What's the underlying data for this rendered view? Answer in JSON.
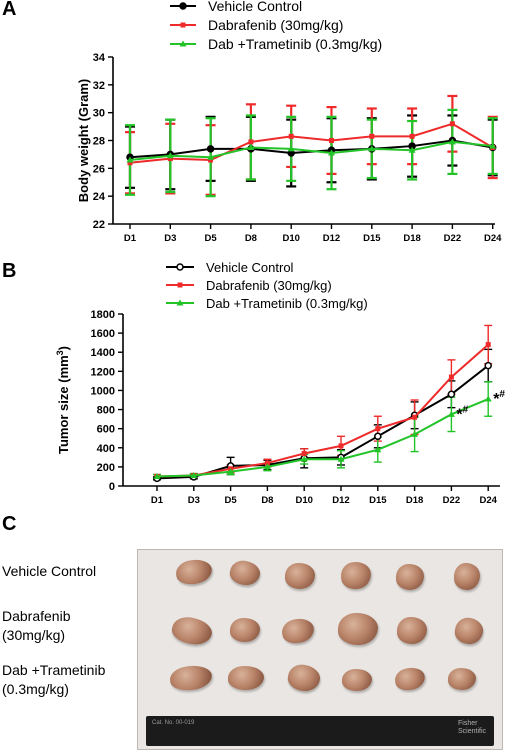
{
  "panels": {
    "a": {
      "letter": "A"
    },
    "b": {
      "letter": "B"
    },
    "c": {
      "letter": "C"
    }
  },
  "colors": {
    "vehicle": "#000000",
    "dabrafenib": "#ee2a2a",
    "combo": "#22c428",
    "axis": "#000000"
  },
  "chart_data": [
    {
      "type": "line",
      "panel": "A",
      "ylabel": "Body weight (Gram)",
      "xlabel": "",
      "categories": [
        "D1",
        "D3",
        "D5",
        "D8",
        "D10",
        "D12",
        "D15",
        "D18",
        "D22",
        "D24"
      ],
      "ylim": [
        22,
        34
      ],
      "yticks": [
        22,
        24,
        26,
        28,
        30,
        32,
        34
      ],
      "legend_position": "top",
      "series": [
        {
          "name": "Vehicle Control",
          "color": "#000000",
          "marker": "circle",
          "values": [
            26.8,
            27.0,
            27.4,
            27.4,
            27.1,
            27.3,
            27.4,
            27.6,
            28.0,
            27.5
          ],
          "errors": [
            2.2,
            2.5,
            2.3,
            2.3,
            2.4,
            2.3,
            2.2,
            2.2,
            1.8,
            2.0
          ]
        },
        {
          "name": "Dabrafenib (30mg/kg)",
          "color": "#ee2a2a",
          "marker": "square",
          "values": [
            26.4,
            26.7,
            26.6,
            27.9,
            28.3,
            28.0,
            28.3,
            28.3,
            29.2,
            27.5
          ],
          "errors": [
            2.2,
            2.5,
            2.5,
            2.7,
            2.2,
            2.4,
            2.0,
            2.0,
            2.0,
            2.2
          ]
        },
        {
          "name": "Dab +Trametinib (0.3mg/kg)",
          "color": "#22c428",
          "marker": "triangle",
          "values": [
            26.6,
            26.9,
            26.8,
            27.5,
            27.4,
            27.1,
            27.4,
            27.3,
            27.9,
            27.6
          ],
          "errors": [
            2.5,
            2.6,
            2.8,
            2.3,
            2.3,
            2.6,
            2.1,
            2.1,
            2.3,
            2.0
          ]
        }
      ]
    },
    {
      "type": "line",
      "panel": "B",
      "ylabel": "Tumor size (mm",
      "ylabel_sup": "3",
      "ylabel_close": ")",
      "xlabel": "",
      "categories": [
        "D1",
        "D3",
        "D5",
        "D8",
        "D10",
        "D12",
        "D15",
        "D18",
        "D22",
        "D24"
      ],
      "ylim": [
        0,
        1800
      ],
      "yticks": [
        0,
        200,
        400,
        600,
        800,
        1000,
        1200,
        1400,
        1600,
        1800
      ],
      "legend_position": "top",
      "annotations": [
        {
          "category": "D22",
          "text": "*",
          "sup": "#"
        },
        {
          "category": "D24",
          "text": "*",
          "sup": "#"
        }
      ],
      "series": [
        {
          "name": "Vehicle Control",
          "color": "#000000",
          "marker": "open-circle",
          "values": [
            80,
            95,
            210,
            220,
            290,
            300,
            520,
            740,
            960,
            1260
          ],
          "errors": [
            15,
            20,
            90,
            50,
            100,
            80,
            120,
            140,
            140,
            170
          ]
        },
        {
          "name": "Dabrafenib (30mg/kg)",
          "color": "#ee2a2a",
          "marker": "square",
          "values": [
            100,
            110,
            180,
            240,
            340,
            420,
            600,
            720,
            1140,
            1480
          ],
          "errors": [
            20,
            20,
            40,
            40,
            50,
            100,
            130,
            180,
            180,
            200
          ]
        },
        {
          "name": "Dab +Trametinib (0.3mg/kg)",
          "color": "#22c428",
          "marker": "triangle",
          "values": [
            100,
            110,
            150,
            200,
            280,
            280,
            380,
            540,
            750,
            910
          ],
          "errors": [
            20,
            20,
            30,
            40,
            50,
            90,
            130,
            180,
            180,
            180
          ]
        }
      ]
    }
  ],
  "panel_c": {
    "labels": [
      {
        "lines": [
          "Vehicle Control"
        ]
      },
      {
        "lines": [
          "Dabrafenib",
          "(30mg/kg)"
        ]
      },
      {
        "lines": [
          "Dab +Trametinib",
          "(0.3mg/kg)"
        ]
      }
    ],
    "ruler": {
      "text_left": "Cat. No. 00-019",
      "text_brand_1": "Fisher",
      "text_brand_2": "Scientific"
    }
  }
}
